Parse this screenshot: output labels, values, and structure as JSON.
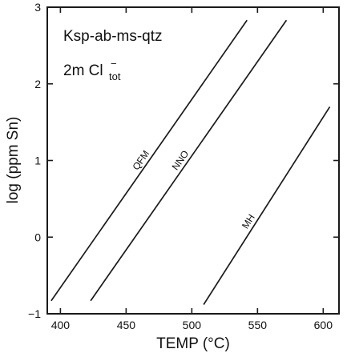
{
  "chart_data": {
    "type": "line",
    "title": "",
    "xlabel": "TEMP (°C)",
    "ylabel": "log (ppm Sn)",
    "xlim": [
      390,
      612
    ],
    "ylim": [
      -1,
      3
    ],
    "xticks": [
      400,
      450,
      500,
      550,
      600
    ],
    "yticks": [
      -1,
      0,
      1,
      2,
      3
    ],
    "grid": false,
    "annotations": {
      "line1": "Ksp-ab-ms-qtz",
      "line2_main": "2m Cl",
      "line2_sub": "tot",
      "line2_sup": "−"
    },
    "series": [
      {
        "name": "QFM",
        "x": [
          393,
          542
        ],
        "y": [
          -0.83,
          2.83
        ]
      },
      {
        "name": "NNO",
        "x": [
          423,
          572
        ],
        "y": [
          -0.83,
          2.83
        ]
      },
      {
        "name": "MH",
        "x": [
          509,
          605
        ],
        "y": [
          -0.88,
          1.7
        ]
      }
    ]
  }
}
